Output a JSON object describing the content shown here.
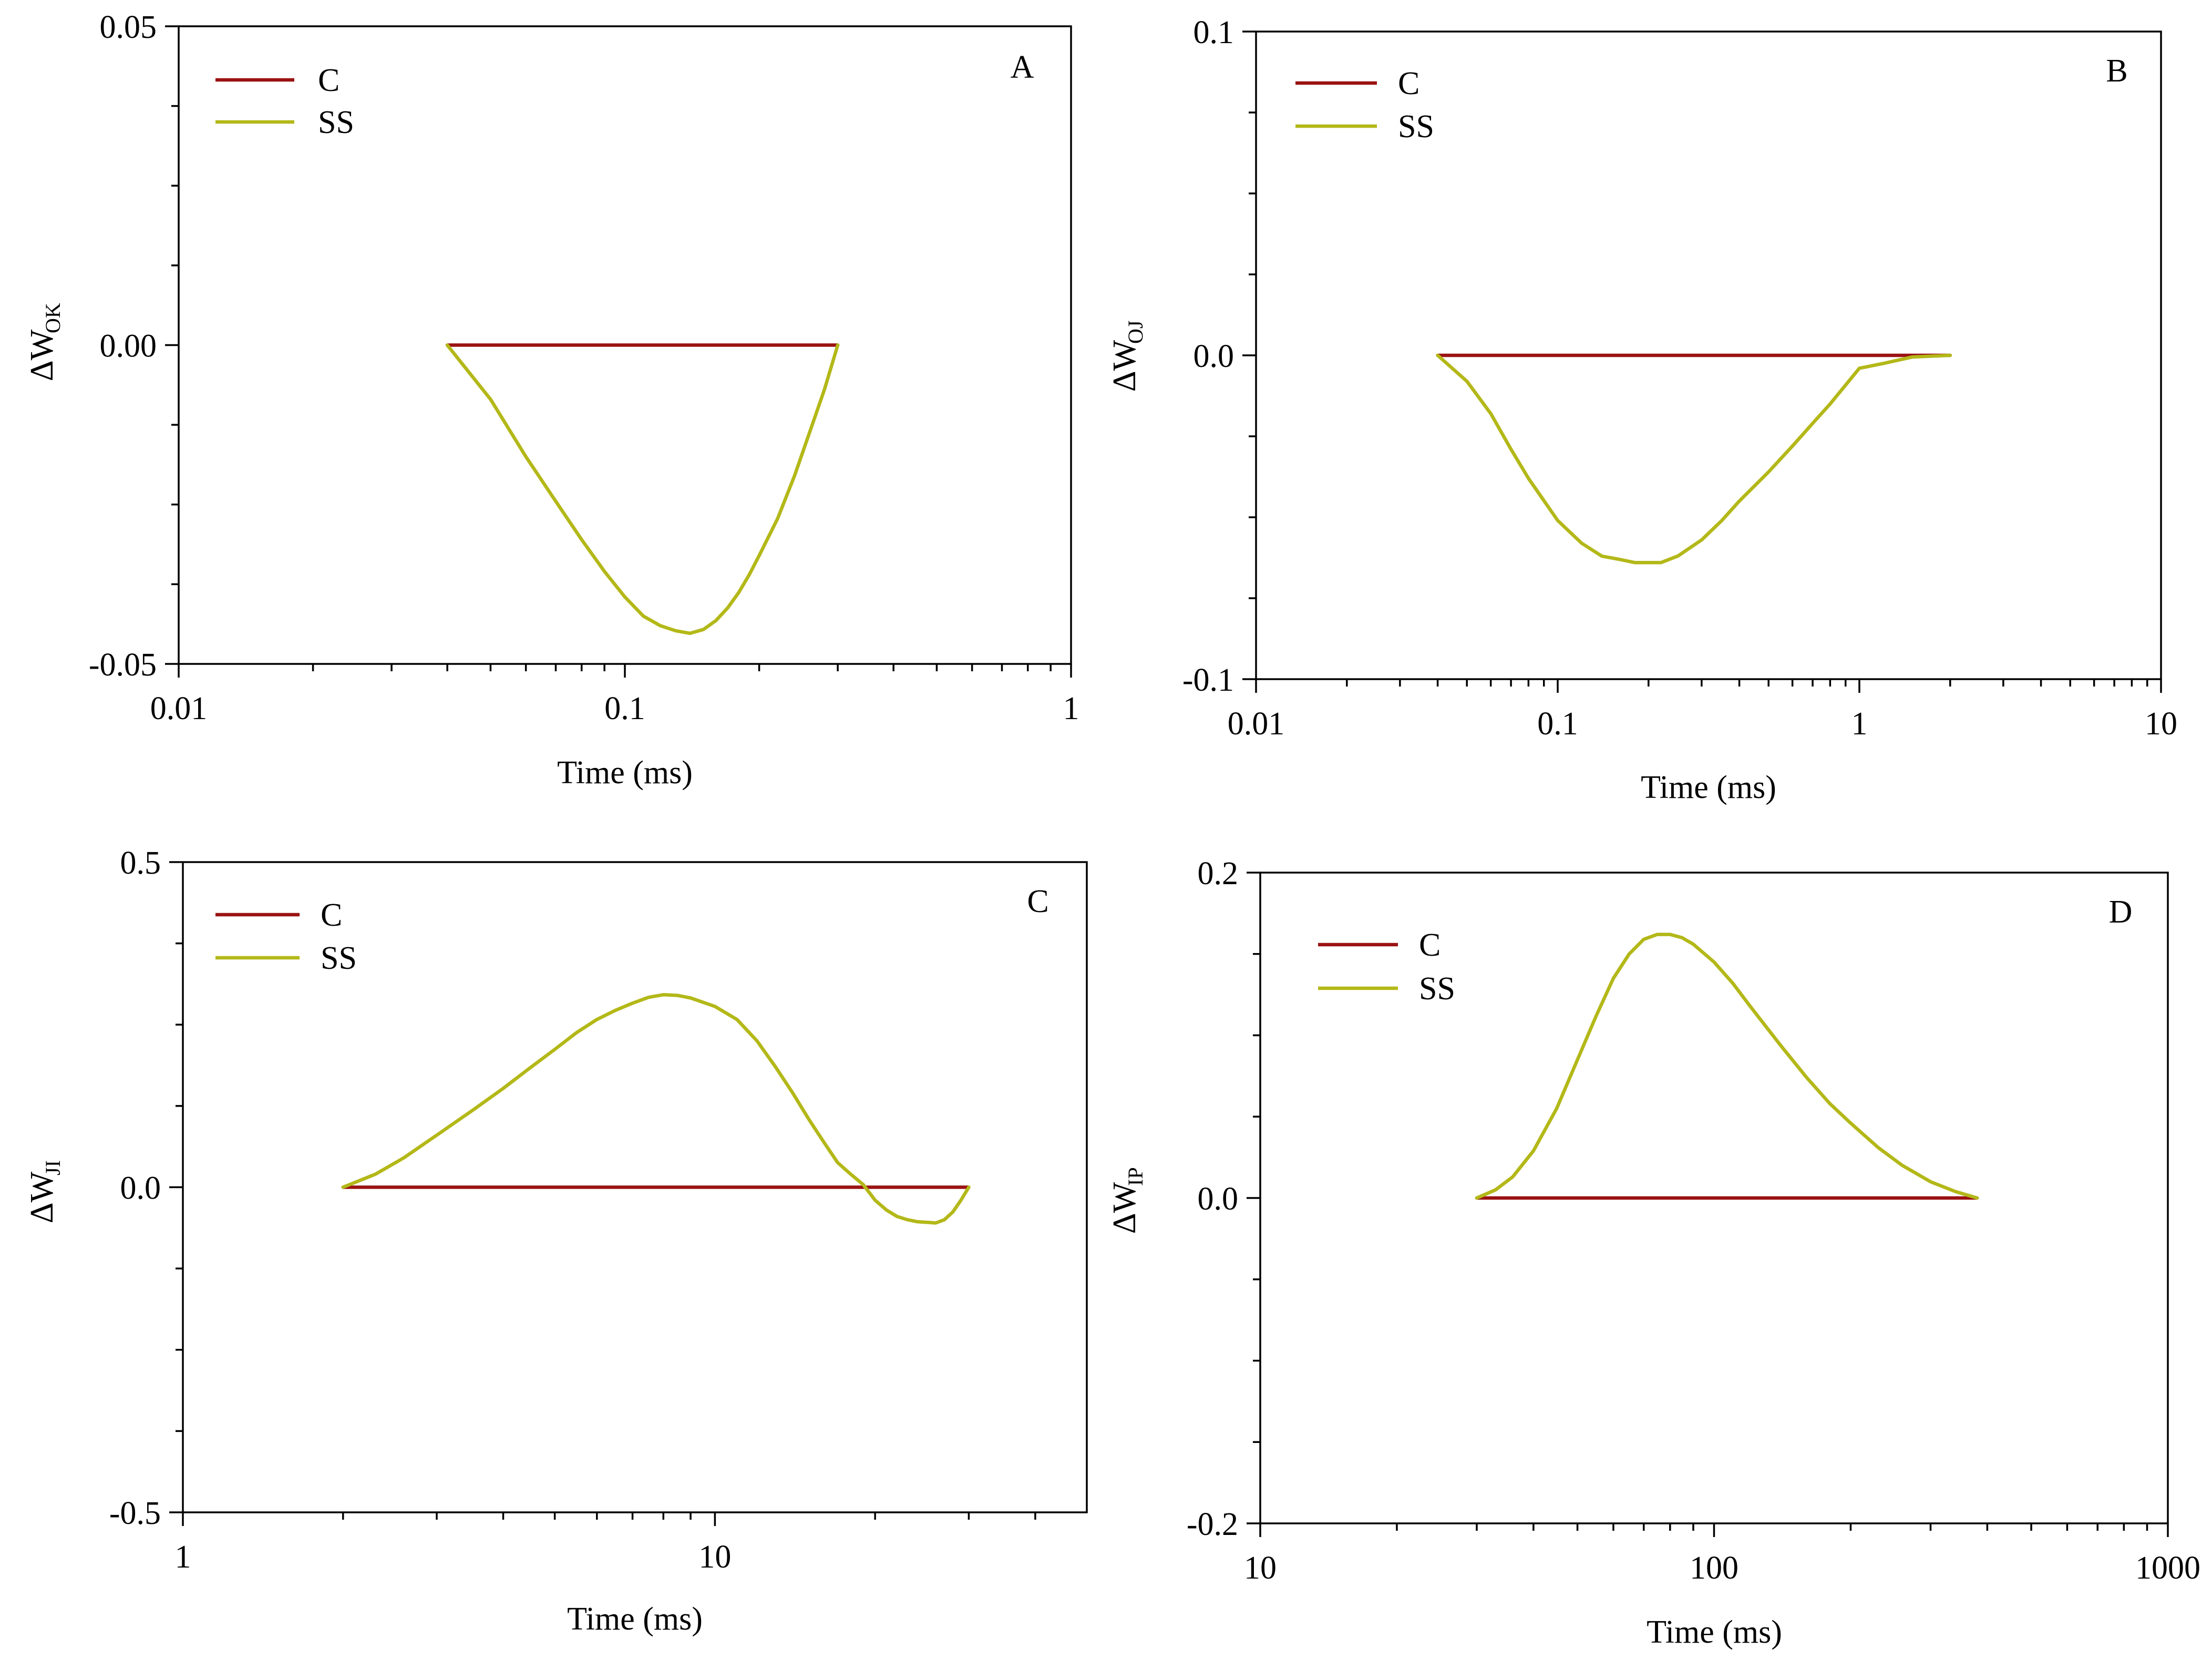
{
  "colors": {
    "C": "#9b1212",
    "SS": "#b3b818",
    "axis": "#000000"
  },
  "chart_data": [
    {
      "type": "line",
      "panel_label": "A",
      "xlabel": "Time (ms)",
      "ylabel_main": "ΔW",
      "ylabel_sub": "OK",
      "xscale": "log",
      "xlim": [
        0.01,
        1
      ],
      "ylim": [
        -0.05,
        0.05
      ],
      "xticks": [
        0.01,
        0.1,
        1
      ],
      "xtick_labels": [
        "0.01",
        "0.1",
        "1"
      ],
      "yticks": [
        -0.05,
        0,
        0.05
      ],
      "ytick_labels": [
        "-0.05",
        "0.00",
        "0.05"
      ],
      "grid": false,
      "legend": "top-left",
      "series": [
        {
          "name": "C",
          "x": [
            0.04,
            0.3
          ],
          "y": [
            0,
            0
          ]
        },
        {
          "name": "SS",
          "x": [
            0.04,
            0.05,
            0.06,
            0.07,
            0.08,
            0.09,
            0.1,
            0.11,
            0.12,
            0.13,
            0.14,
            0.15,
            0.16,
            0.17,
            0.18,
            0.19,
            0.2,
            0.22,
            0.24,
            0.26,
            0.28,
            0.3
          ],
          "y": [
            0,
            -0.0085,
            -0.0175,
            -0.0245,
            -0.0305,
            -0.0355,
            -0.0395,
            -0.0425,
            -0.044,
            -0.0448,
            -0.0452,
            -0.0446,
            -0.0432,
            -0.0412,
            -0.0388,
            -0.036,
            -0.033,
            -0.0272,
            -0.0205,
            -0.0135,
            -0.007,
            0
          ]
        }
      ]
    },
    {
      "type": "line",
      "panel_label": "B",
      "xlabel": "Time (ms)",
      "ylabel_main": "ΔW",
      "ylabel_sub": "OJ",
      "xscale": "log",
      "xlim": [
        0.01,
        10
      ],
      "ylim": [
        -0.1,
        0.1
      ],
      "xticks": [
        0.01,
        0.1,
        1,
        10
      ],
      "xtick_labels": [
        "0.01",
        "0.1",
        "1",
        "10"
      ],
      "yticks": [
        -0.1,
        0,
        0.1
      ],
      "ytick_labels": [
        "-0.1",
        "0.0",
        "0.1"
      ],
      "grid": false,
      "legend": "top-left",
      "series": [
        {
          "name": "C",
          "x": [
            0.04,
            2
          ],
          "y": [
            0,
            0
          ]
        },
        {
          "name": "SS",
          "x": [
            0.04,
            0.05,
            0.06,
            0.07,
            0.08,
            0.1,
            0.12,
            0.14,
            0.16,
            0.18,
            0.2,
            0.22,
            0.25,
            0.3,
            0.35,
            0.4,
            0.5,
            0.6,
            0.7,
            0.8,
            1.0,
            1.2,
            1.5,
            2.0
          ],
          "y": [
            0,
            -0.008,
            -0.018,
            -0.029,
            -0.038,
            -0.051,
            -0.058,
            -0.062,
            -0.063,
            -0.064,
            -0.064,
            -0.064,
            -0.062,
            -0.057,
            -0.051,
            -0.045,
            -0.036,
            -0.028,
            -0.021,
            -0.015,
            -0.004,
            -0.0025,
            -0.0005,
            0
          ]
        }
      ]
    },
    {
      "type": "line",
      "panel_label": "C",
      "xlabel": "Time (ms)",
      "ylabel_main": "ΔW",
      "ylabel_sub": "JI",
      "xscale": "log",
      "xlim": [
        1,
        50
      ],
      "ylim": [
        -0.5,
        0.5
      ],
      "xticks": [
        1,
        10
      ],
      "xtick_labels": [
        "1",
        "10"
      ],
      "yticks": [
        -0.5,
        0,
        0.5
      ],
      "ytick_labels": [
        "-0.5",
        "0.0",
        "0.5"
      ],
      "grid": false,
      "legend": "top-left",
      "series": [
        {
          "name": "C",
          "x": [
            2,
            30
          ],
          "y": [
            0,
            0
          ]
        },
        {
          "name": "SS",
          "x": [
            2,
            2.3,
            2.6,
            3.0,
            3.5,
            4.0,
            4.5,
            5.0,
            5.5,
            6.0,
            6.5,
            7.0,
            7.5,
            8.0,
            8.5,
            9.0,
            10,
            11,
            12,
            13,
            14,
            15,
            16,
            17,
            18,
            19,
            20,
            21,
            22,
            23,
            24,
            25,
            26,
            27,
            28,
            29,
            30
          ],
          "y": [
            0,
            0.02,
            0.045,
            0.08,
            0.118,
            0.152,
            0.184,
            0.212,
            0.238,
            0.258,
            0.272,
            0.283,
            0.292,
            0.296,
            0.295,
            0.291,
            0.278,
            0.258,
            0.225,
            0.185,
            0.145,
            0.105,
            0.07,
            0.038,
            0.02,
            0.004,
            -0.02,
            -0.035,
            -0.045,
            -0.05,
            -0.053,
            -0.054,
            -0.055,
            -0.05,
            -0.038,
            -0.02,
            0
          ]
        }
      ]
    },
    {
      "type": "line",
      "panel_label": "D",
      "xlabel": "Time (ms)",
      "ylabel_main": "ΔW",
      "ylabel_sub": "IP",
      "xscale": "log",
      "xlim": [
        10,
        1000
      ],
      "ylim": [
        -0.2,
        0.2
      ],
      "xticks": [
        10,
        100,
        1000
      ],
      "xtick_labels": [
        "10",
        "100",
        "1000"
      ],
      "yticks": [
        -0.2,
        0,
        0.2
      ],
      "ytick_labels": [
        "-0.2",
        "0.0",
        "0.2"
      ],
      "grid": false,
      "legend": "top-left",
      "series": [
        {
          "name": "C",
          "x": [
            30,
            380
          ],
          "y": [
            0,
            0
          ]
        },
        {
          "name": "SS",
          "x": [
            30,
            33,
            36,
            40,
            45,
            50,
            55,
            60,
            65,
            70,
            75,
            80,
            85,
            90,
            100,
            110,
            120,
            140,
            160,
            180,
            200,
            230,
            260,
            300,
            340,
            380
          ],
          "y": [
            0,
            0.005,
            0.013,
            0.029,
            0.055,
            0.085,
            0.112,
            0.135,
            0.15,
            0.159,
            0.162,
            0.162,
            0.16,
            0.156,
            0.145,
            0.132,
            0.118,
            0.094,
            0.074,
            0.058,
            0.046,
            0.031,
            0.02,
            0.01,
            0.004,
            0
          ]
        }
      ]
    }
  ]
}
